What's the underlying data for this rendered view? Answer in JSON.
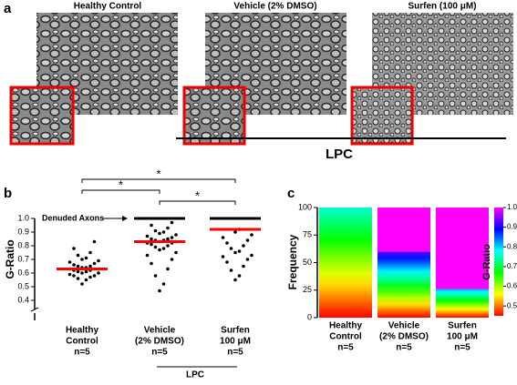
{
  "figure": {
    "panel_a": {
      "label": "a",
      "titles": [
        "Healthy Control",
        "Vehicle (2% DMSO)",
        "Surfen (100 μM)"
      ],
      "group": "LPC"
    },
    "panel_b": {
      "type": "dot",
      "label": "b",
      "ylabel": "G-Ratio",
      "ylim": [
        0.4,
        1.0
      ],
      "yticks": [
        0.4,
        0.5,
        0.6,
        0.7,
        0.8,
        0.9,
        {
          "value": 1.0,
          "label": "1.0"
        }
      ],
      "categories": [
        [
          "Healthy",
          "Control",
          "n=5"
        ],
        [
          "Vehicle",
          "(2% DMSO)",
          "n=5"
        ],
        [
          "Surfen",
          "100 μM",
          "n=5"
        ]
      ],
      "group": "LPC",
      "annotation": "Denuded Axons",
      "dot_color": "#000000",
      "mean_color": "#ff0000",
      "series": [
        {
          "values": [
            0.52,
            0.55,
            0.56,
            0.57,
            0.58,
            0.58,
            0.59,
            0.6,
            0.6,
            0.61,
            0.61,
            0.62,
            0.62,
            0.63,
            0.63,
            0.63,
            0.64,
            0.64,
            0.65,
            0.65,
            0.66,
            0.67,
            0.68,
            0.69,
            0.7,
            0.71,
            0.73,
            0.75,
            0.78,
            0.83
          ]
        },
        {
          "values": [
            0.47,
            0.52,
            0.58,
            0.63,
            0.67,
            0.7,
            0.73,
            0.75,
            0.77,
            0.78,
            0.79,
            0.8,
            0.81,
            0.82,
            0.82,
            0.83,
            0.83,
            0.84,
            0.84,
            0.85,
            0.85,
            0.86,
            0.87,
            0.88,
            0.89,
            0.9,
            0.91,
            0.93,
            0.95,
            0.97
          ]
        },
        {
          "values": [
            0.55,
            0.58,
            0.62,
            0.65,
            0.68,
            0.7,
            0.72,
            0.73,
            0.75,
            0.76,
            0.78,
            0.8,
            0.82,
            0.84,
            0.86,
            0.88,
            0.9,
            0.92
          ]
        }
      ],
      "means": [
        0.63,
        0.83,
        0.92
      ],
      "denuded": [
        null,
        1.0,
        1.0
      ],
      "significance": [
        {
          "pair": [
            0,
            2
          ],
          "label": "*"
        },
        {
          "pair": [
            0,
            1
          ],
          "label": "*"
        },
        {
          "pair": [
            1,
            2
          ],
          "label": "*"
        }
      ]
    },
    "panel_c": {
      "type": "stacked_bar",
      "label": "c",
      "ylabel": "Frequency",
      "ylim": [
        0,
        100
      ],
      "yticks": [
        0,
        25,
        50,
        75,
        100
      ],
      "categories": [
        [
          "Healthy",
          "Control",
          "n=5"
        ],
        [
          "Vehicle",
          "(2% DMSO)",
          "n=5"
        ],
        [
          "Surfen",
          "100 μM",
          "n=5"
        ]
      ],
      "series": [
        {
          "values": [
            100,
            60,
            26
          ],
          "gratio_range": [
            [
              0.45,
              0.76
            ],
            [
              0.45,
              0.93
            ],
            [
              0.45,
              0.82
            ]
          ]
        },
        {
          "color": "#ff00ff",
          "values": [
            0,
            40,
            74
          ]
        }
      ],
      "colorbar": {
        "label": "G-Ratio",
        "clim": [
          0.45,
          1.0
        ],
        "ticks": [
          0.5,
          0.6,
          0.7,
          0.8,
          0.9,
          {
            "value": 1.0,
            "label": "1.0"
          }
        ],
        "colormap": [
          "#ff0000",
          "#ffff00",
          "#00ff00",
          "#00ffff",
          "#0000ff",
          "#ff00ff"
        ]
      }
    }
  }
}
